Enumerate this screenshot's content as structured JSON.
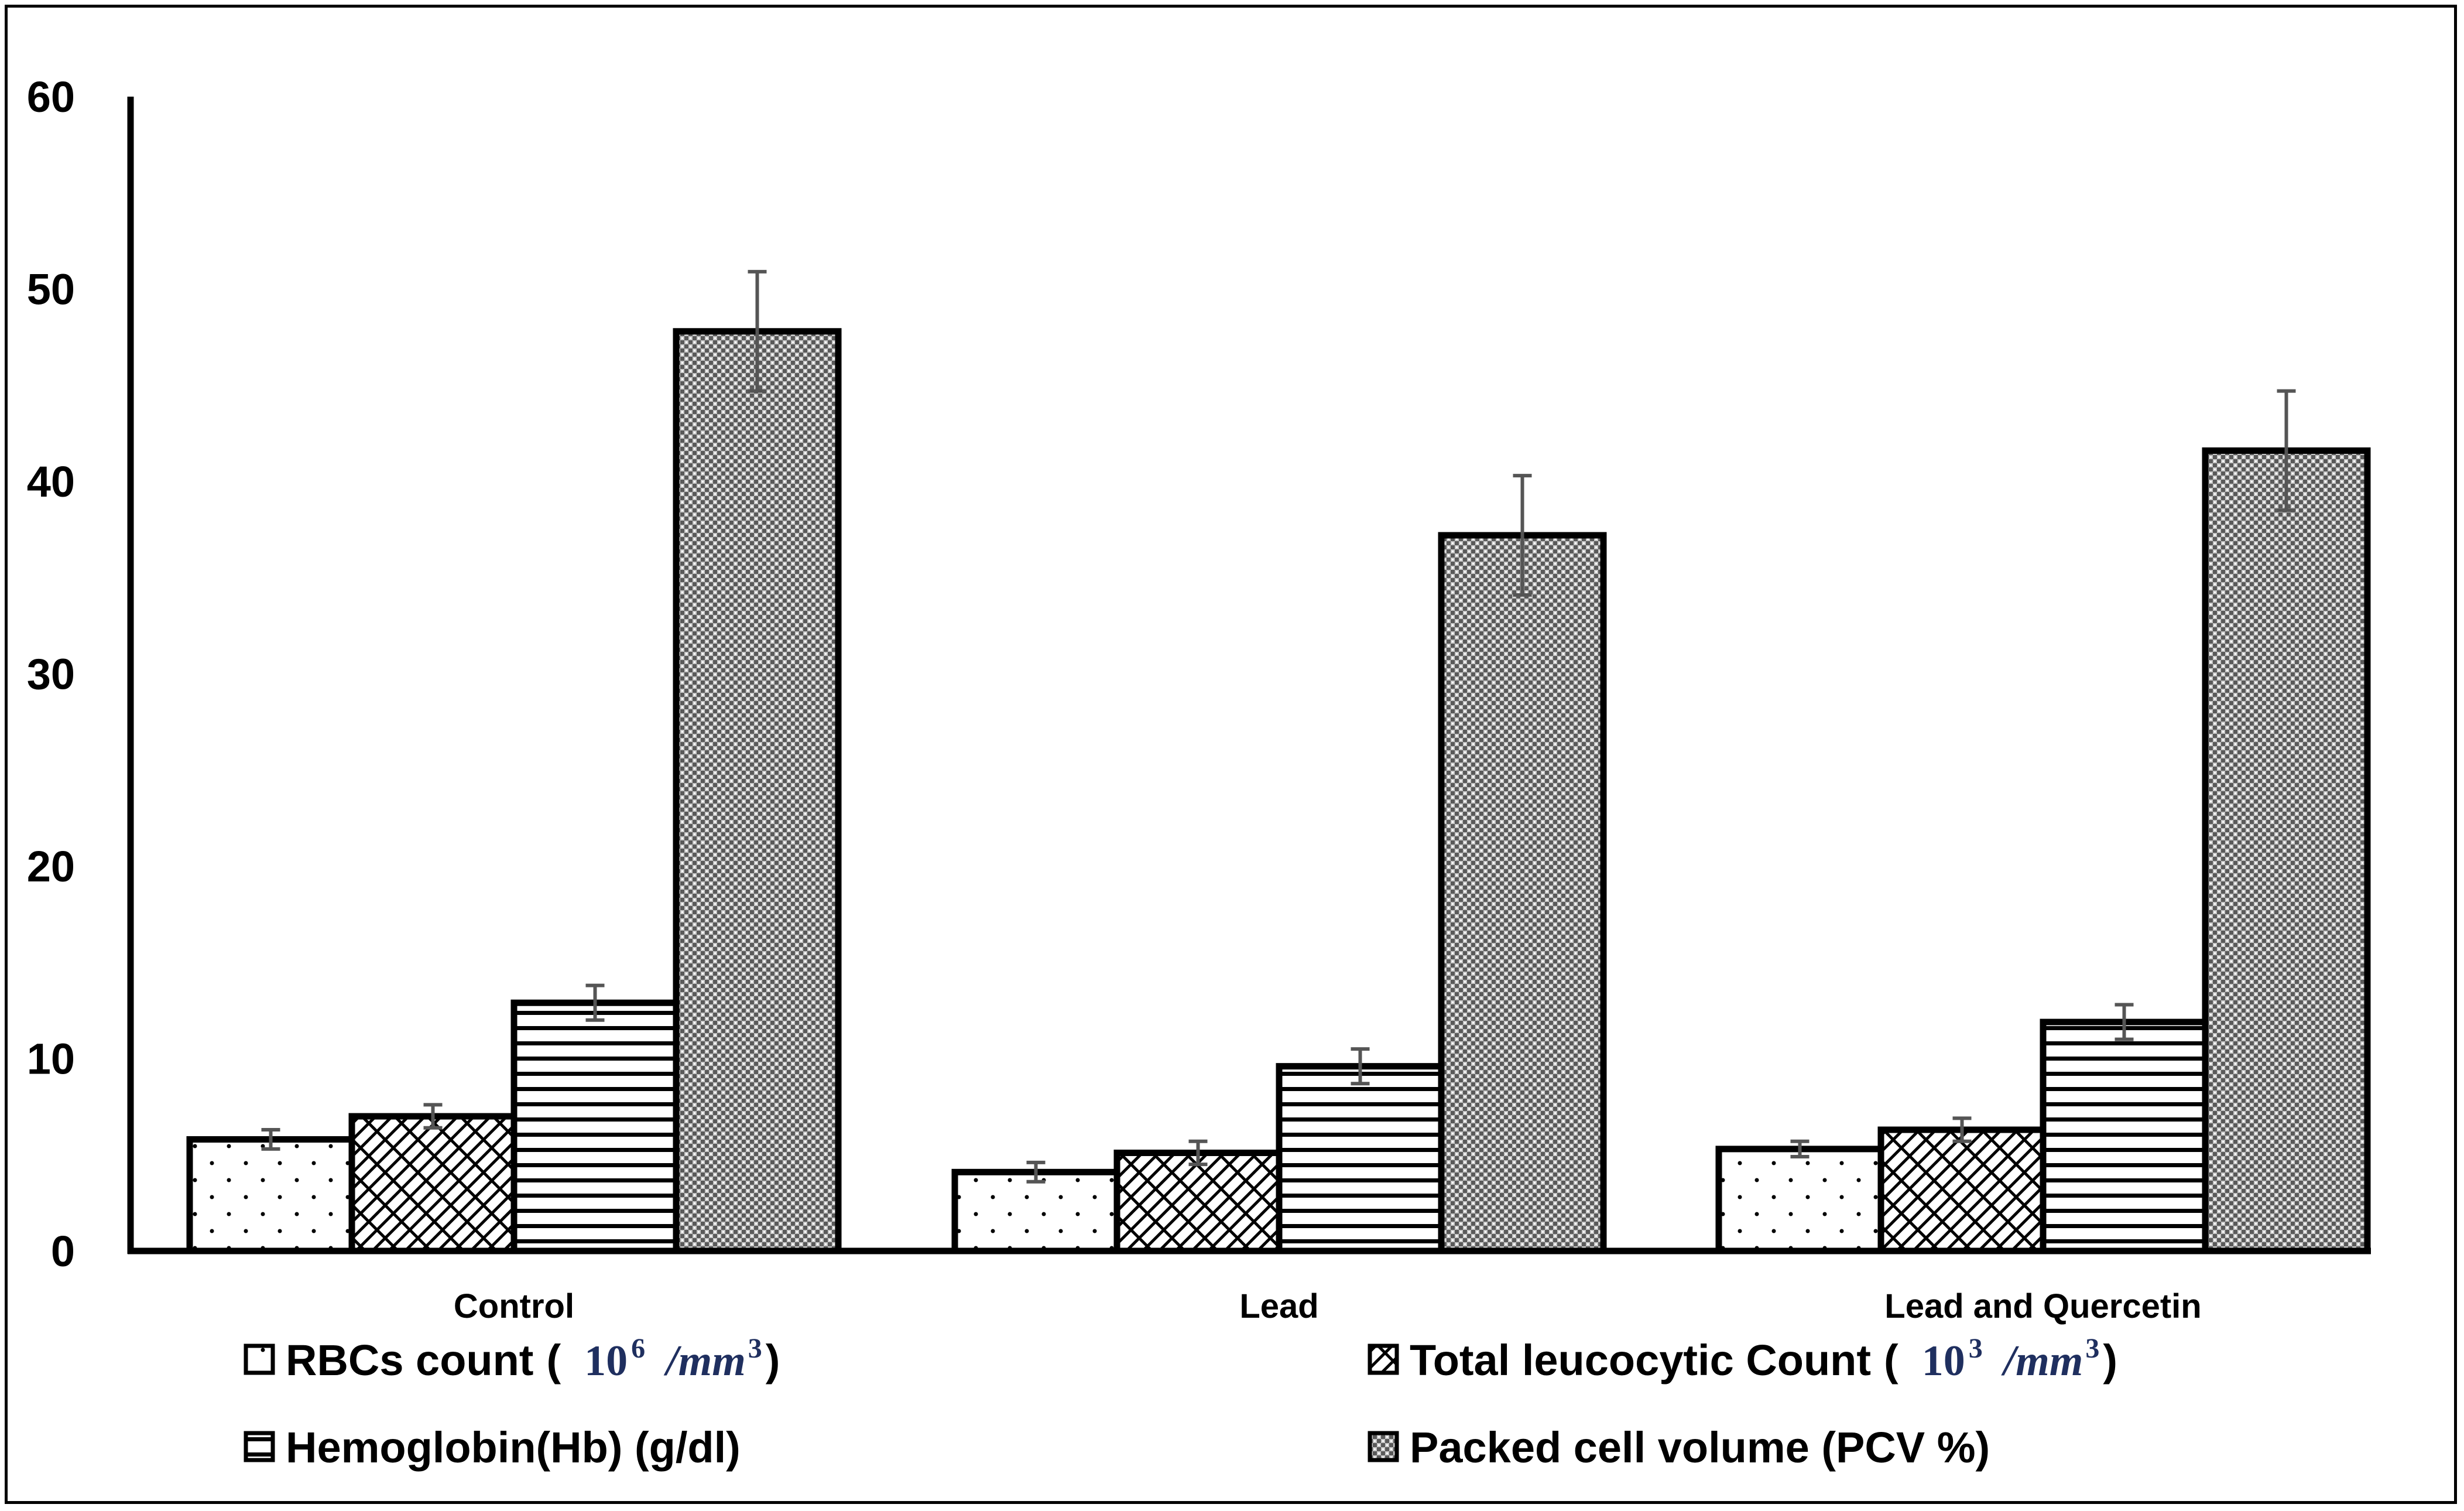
{
  "chart_data": {
    "type": "bar",
    "categories": [
      "Control",
      "Lead",
      "Lead and Quercetin"
    ],
    "series": [
      {
        "name": "RBCs count",
        "unit_prefix": "(",
        "unit_num": "10",
        "unit_exp": "6",
        "unit_div": "/mm",
        "unit_div_exp": "3",
        "unit_suffix": ")",
        "pattern": "dots",
        "values": [
          5.8,
          4.1,
          5.3
        ],
        "errors": [
          0.5,
          0.5,
          0.4
        ]
      },
      {
        "name": "Total leucocytic Count",
        "unit_prefix": "(",
        "unit_num": "10",
        "unit_exp": "3",
        "unit_div": "/mm",
        "unit_div_exp": "3",
        "unit_suffix": ")",
        "pattern": "crosshatch",
        "values": [
          7.0,
          5.1,
          6.3
        ],
        "errors": [
          0.6,
          0.6,
          0.6
        ]
      },
      {
        "name": "Hemoglobin(Hb)  (g/dl)",
        "pattern": "horizontal",
        "values": [
          12.9,
          9.6,
          11.9
        ],
        "errors": [
          0.9,
          0.9,
          0.9
        ]
      },
      {
        "name": "Packed cell volume (PCV %)",
        "pattern": "checker",
        "values": [
          47.8,
          37.2,
          41.6
        ],
        "errors": [
          3.1,
          3.1,
          3.1
        ]
      }
    ],
    "yticks": [
      0,
      10,
      20,
      30,
      40,
      50,
      60
    ],
    "ylim": [
      0,
      60
    ],
    "title": "",
    "xlabel": "",
    "ylabel": "",
    "legend_position": "bottom",
    "grid": false
  }
}
